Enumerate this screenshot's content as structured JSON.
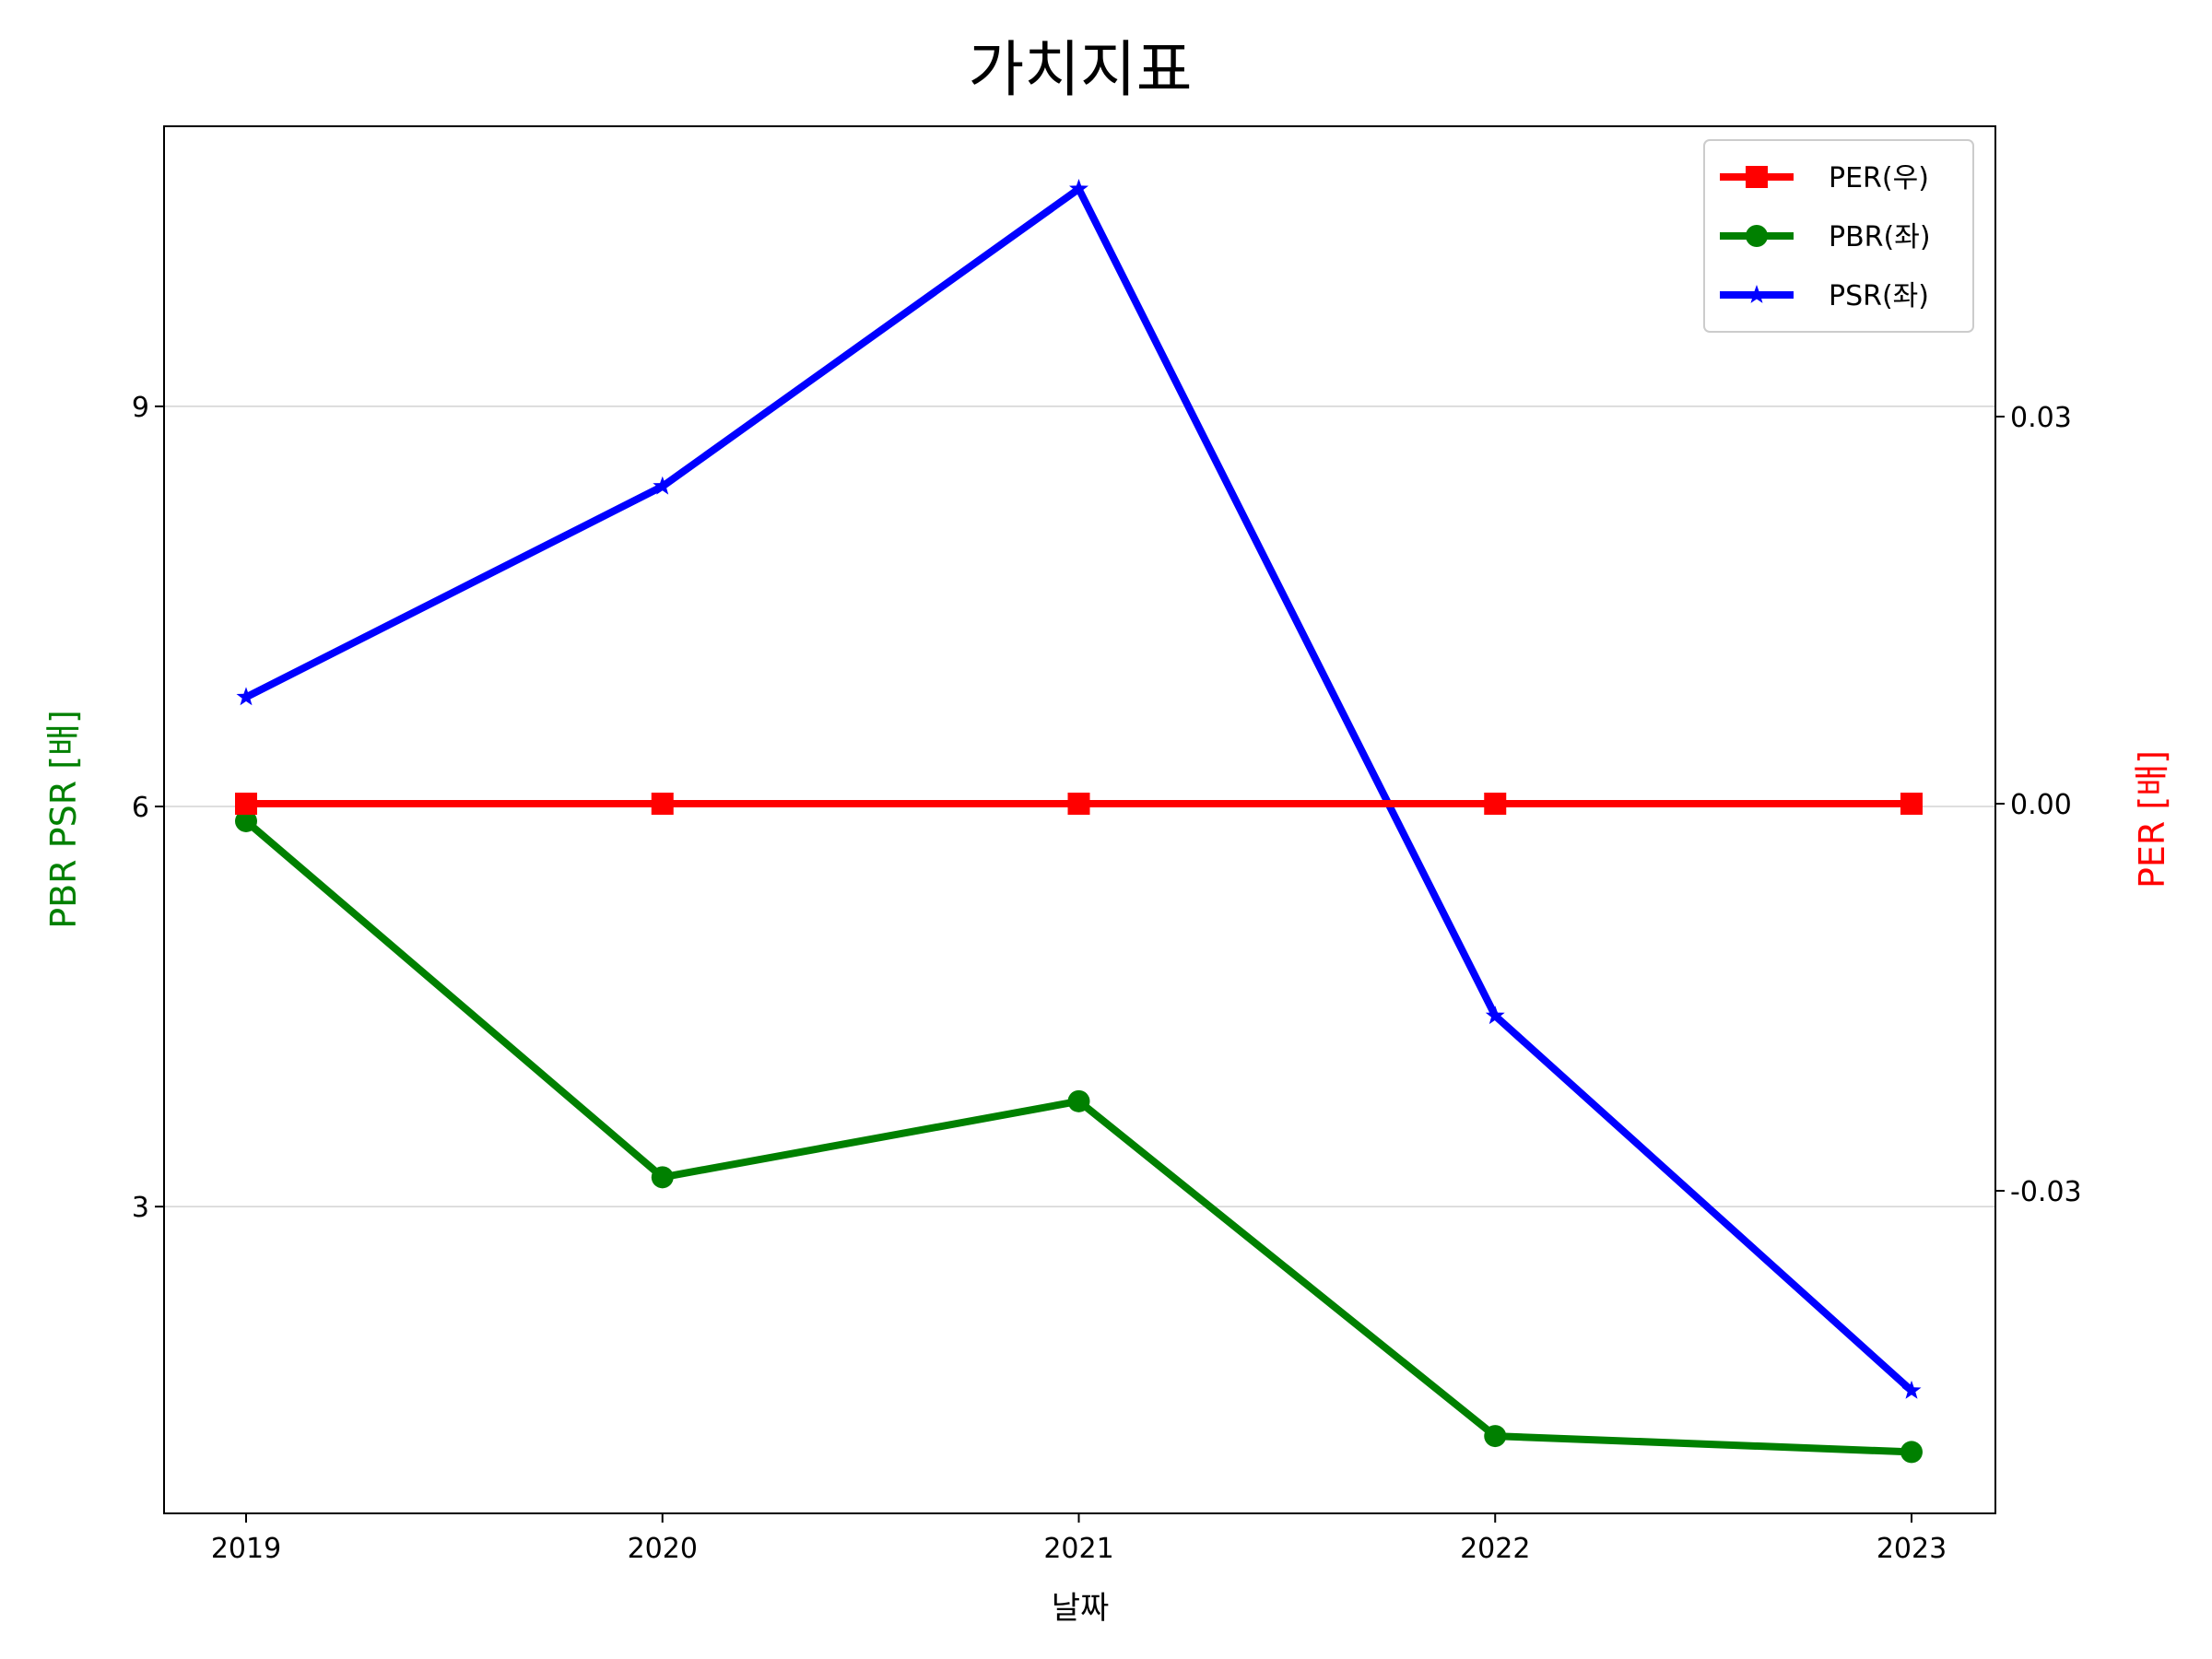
{
  "chart_data": {
    "type": "line",
    "title": "가치지표",
    "xlabel": "날짜",
    "ylabel_left": "PBR PSR [배]",
    "ylabel_right": "PER [배]",
    "categories": [
      "2019",
      "2020",
      "2021",
      "2022",
      "2023"
    ],
    "ylim_left": [
      0.7,
      11.1
    ],
    "yticks_left": [
      3,
      6,
      9
    ],
    "ytick_labels_left": [
      "3",
      "6",
      "9"
    ],
    "ylim_right": [
      -0.055,
      0.0525
    ],
    "yticks_right": [
      -0.03,
      0.0,
      0.03
    ],
    "ytick_labels_right": [
      "-0.03",
      "0.00",
      "0.03"
    ],
    "grid": "horizontal (left axis)",
    "legend_position": "top-right",
    "series": [
      {
        "name": "PER(우)",
        "axis": "right",
        "color": "#ff0000",
        "marker": "square",
        "values": [
          0,
          0,
          0,
          0,
          0
        ]
      },
      {
        "name": "PBR(좌)",
        "axis": "left",
        "color": "#008000",
        "marker": "circle",
        "values": [
          5.89,
          3.22,
          3.79,
          1.28,
          1.16
        ]
      },
      {
        "name": "PSR(좌)",
        "axis": "left",
        "color": "#0000ff",
        "marker": "star",
        "values": [
          6.82,
          8.4,
          10.63,
          4.43,
          1.62
        ]
      }
    ]
  }
}
